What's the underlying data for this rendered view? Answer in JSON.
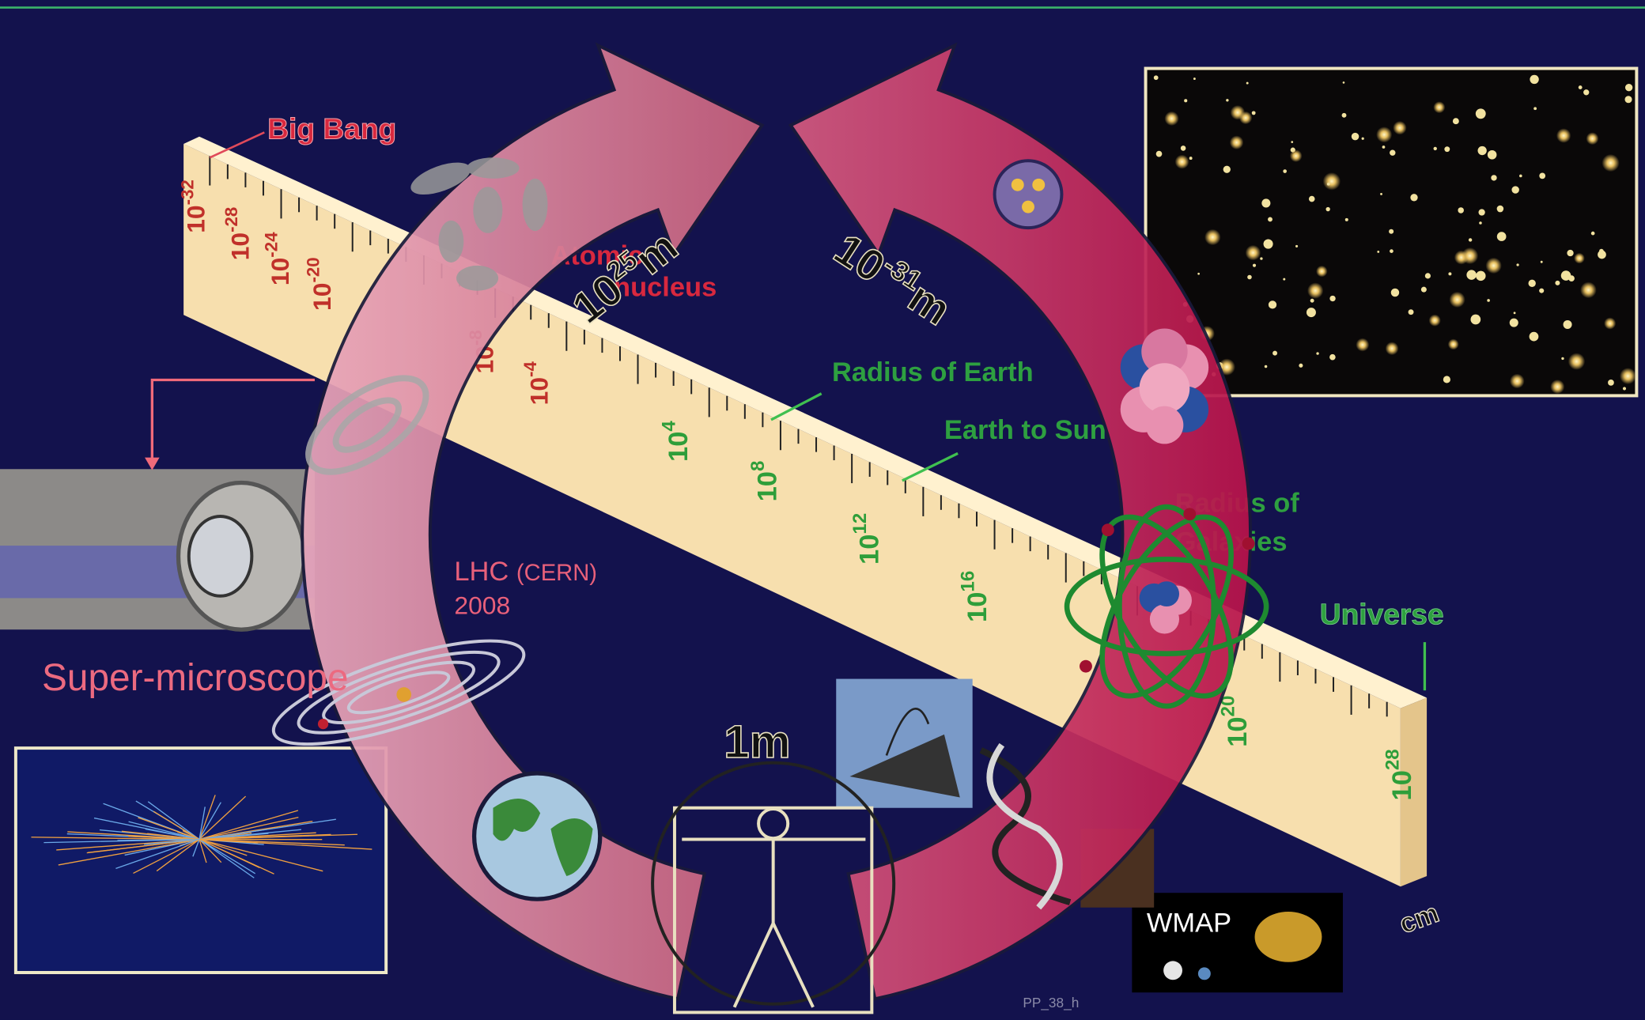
{
  "ruler": {
    "small_ticks": [
      {
        "base": "10",
        "exp": "-32"
      },
      {
        "base": "10",
        "exp": "-28"
      },
      {
        "base": "10",
        "exp": "-24"
      },
      {
        "base": "10",
        "exp": "-20"
      },
      {
        "base": "10",
        "exp": "-8"
      },
      {
        "base": "10",
        "exp": "-4"
      }
    ],
    "large_ticks": [
      {
        "base": "10",
        "exp": "4"
      },
      {
        "base": "10",
        "exp": "8"
      },
      {
        "base": "10",
        "exp": "12"
      },
      {
        "base": "10",
        "exp": "16"
      },
      {
        "base": "10",
        "exp": "20"
      },
      {
        "base": "10",
        "exp": "28"
      }
    ],
    "unit": "cm"
  },
  "labels": {
    "big_bang": "Big Bang",
    "atomic_nucleus": [
      "Atomic",
      "nucleus"
    ],
    "radius_of_earth": "Radius of Earth",
    "earth_to_sun": "Earth to Sun",
    "radius_of_galaxies": [
      "Radius of",
      "Galaxies"
    ],
    "universe": "Universe"
  },
  "cycle": {
    "large_scale": {
      "base": "10",
      "exp": "25",
      "unit": "m"
    },
    "small_scale": {
      "base": "10",
      "exp": "-31",
      "unit": "m"
    },
    "human_scale": "1m"
  },
  "lhc": {
    "name": "LHC",
    "place": "(CERN)",
    "year": "2008"
  },
  "super_microscope": "Super-microscope",
  "wmap": "WMAP",
  "footer": "PP_38_h"
}
